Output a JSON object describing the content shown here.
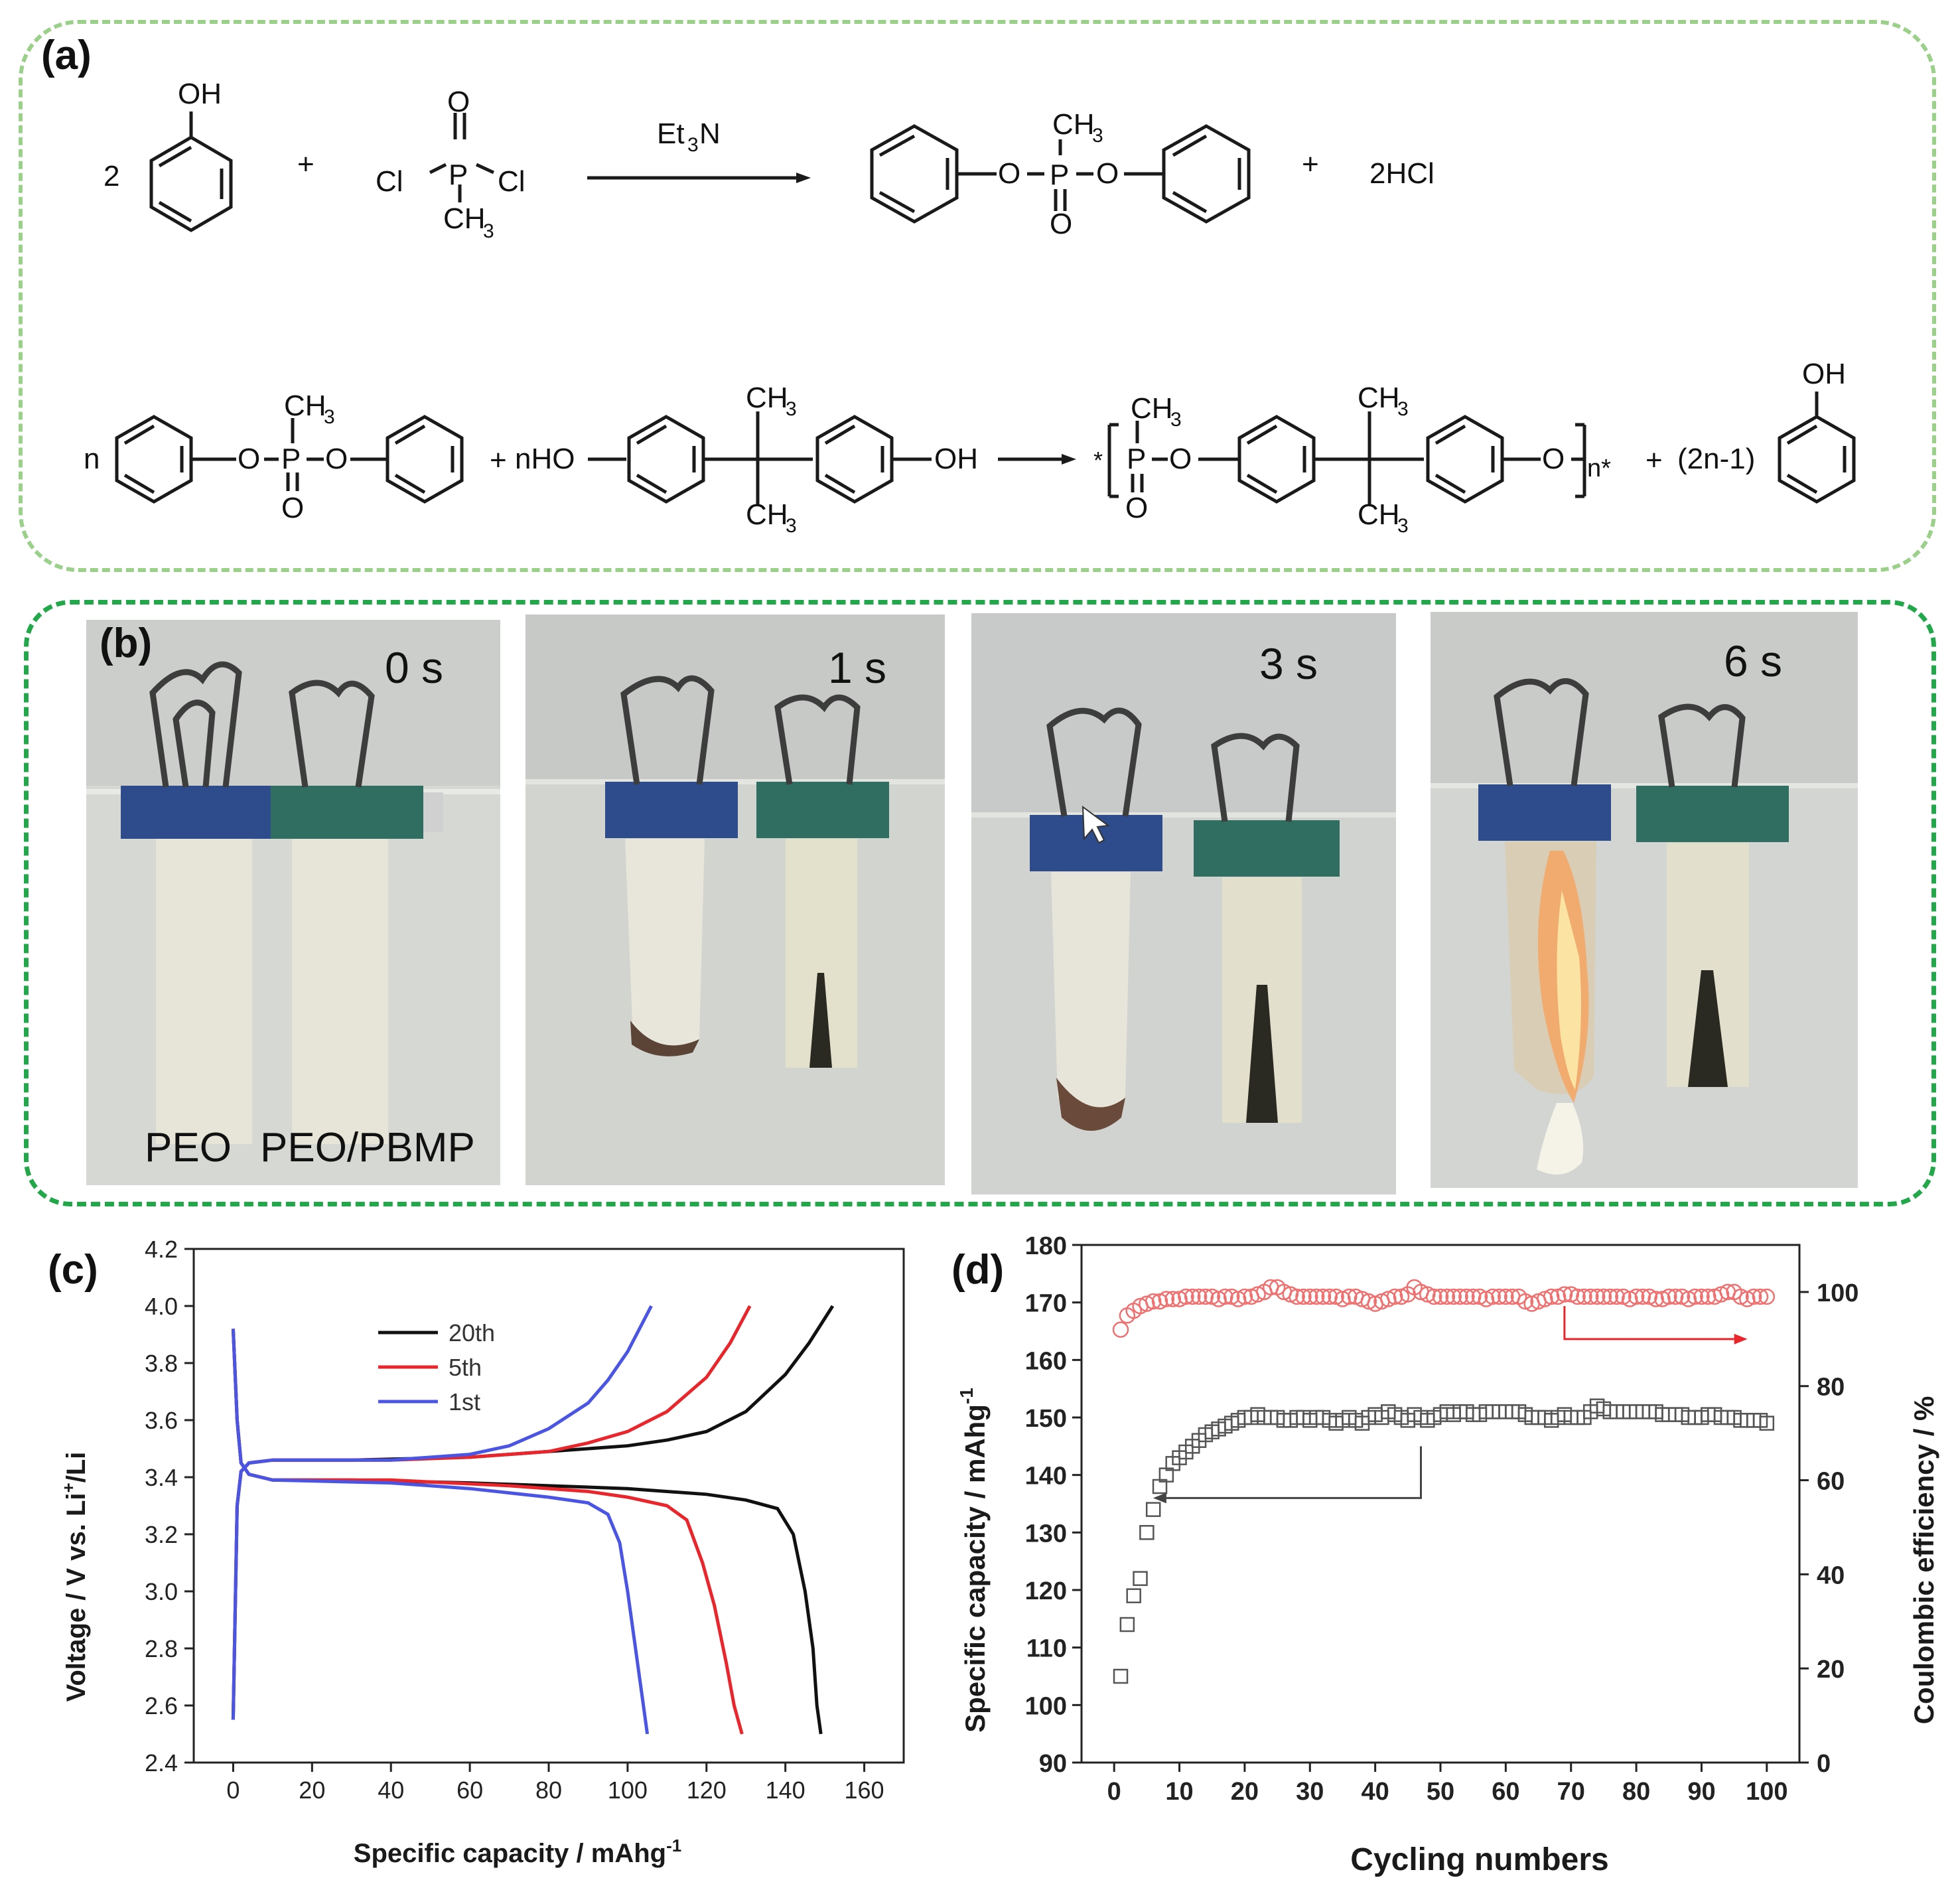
{
  "panel_labels": {
    "a": "(a)",
    "b": "(b)",
    "c": "(c)",
    "d": "(d)"
  },
  "reaction1": {
    "coef": "2",
    "oh": "OH",
    "plus": "+",
    "cl": "Cl",
    "p": "P",
    "o": "O",
    "ch3": "CH",
    "sub3": "3",
    "reagent": "Et",
    "reagent_sub": "3",
    "reagent_n": "N",
    "product_coef": "2HCl"
  },
  "reaction2": {
    "n": "n",
    "nho": "nHO",
    "oh": "OH",
    "o": "O",
    "p": "P",
    "ch3": "CH",
    "sub3": "3",
    "star": "*",
    "nstar": "n*",
    "plus": "+",
    "coef2": "(2n-1)"
  },
  "photos": {
    "times": [
      "0 s",
      "1 s",
      "3 s",
      "6 s"
    ],
    "label_peo": "PEO",
    "label_peo_pbmp": "PEO/PBMP"
  },
  "colors": {
    "clip_blue": "#2e4b8c",
    "clip_green": "#2f6e60",
    "flame": "#f4a766"
  },
  "chart_data": [
    {
      "type": "line",
      "panel": "c",
      "xlabel": "Specific capacity / mAhg",
      "xlabel_sup": "-1",
      "ylabel": "Voltage / V vs. Li",
      "ylabel_sup": "+",
      "ylabel_tail": "/Li",
      "xlim": [
        -10,
        170
      ],
      "ylim": [
        2.4,
        4.2
      ],
      "xticks": [
        0,
        20,
        40,
        60,
        80,
        100,
        120,
        140,
        160
      ],
      "yticks": [
        2.4,
        2.6,
        2.8,
        3.0,
        3.2,
        3.4,
        3.6,
        3.8,
        4.0,
        4.2
      ],
      "legend_position": "top",
      "series": [
        {
          "name": "20th",
          "color": "#111111",
          "charge": {
            "x": [
              0,
              1,
              2,
              4,
              10,
              30,
              60,
              80,
              100,
              110,
              120,
              130,
              140,
              146,
              152
            ],
            "y": [
              2.55,
              3.3,
              3.42,
              3.45,
              3.46,
              3.46,
              3.47,
              3.49,
              3.51,
              3.53,
              3.56,
              3.63,
              3.76,
              3.87,
              4.0
            ]
          },
          "discharge": {
            "x": [
              0,
              1,
              2,
              4,
              10,
              30,
              60,
              80,
              100,
              120,
              130,
              138,
              142,
              145,
              147,
              148,
              149
            ],
            "y": [
              3.92,
              3.6,
              3.45,
              3.41,
              3.39,
              3.39,
              3.38,
              3.37,
              3.36,
              3.34,
              3.32,
              3.29,
              3.2,
              3.0,
              2.8,
              2.6,
              2.5
            ]
          }
        },
        {
          "name": "5th",
          "color": "#e8262c",
          "charge": {
            "x": [
              0,
              1,
              2,
              4,
              10,
              40,
              60,
              80,
              90,
              100,
              110,
              120,
              126,
              131
            ],
            "y": [
              2.55,
              3.3,
              3.42,
              3.45,
              3.46,
              3.46,
              3.47,
              3.49,
              3.52,
              3.56,
              3.63,
              3.75,
              3.87,
              4.0
            ]
          },
          "discharge": {
            "x": [
              0,
              1,
              2,
              4,
              10,
              40,
              70,
              90,
              100,
              110,
              115,
              119,
              122,
              125,
              127,
              129
            ],
            "y": [
              3.92,
              3.6,
              3.45,
              3.41,
              3.39,
              3.39,
              3.37,
              3.35,
              3.33,
              3.3,
              3.25,
              3.1,
              2.95,
              2.75,
              2.6,
              2.5
            ]
          }
        },
        {
          "name": "1st",
          "color": "#4b55e4",
          "charge": {
            "x": [
              0,
              1,
              2,
              4,
              10,
              40,
              60,
              70,
              80,
              90,
              95,
              100,
              106
            ],
            "y": [
              2.55,
              3.3,
              3.42,
              3.45,
              3.46,
              3.46,
              3.48,
              3.51,
              3.57,
              3.66,
              3.74,
              3.84,
              4.0
            ]
          },
          "discharge": {
            "x": [
              0,
              1,
              2,
              4,
              10,
              40,
              60,
              80,
              90,
              95,
              98,
              100,
              102,
              104,
              105
            ],
            "y": [
              3.92,
              3.6,
              3.45,
              3.41,
              3.39,
              3.38,
              3.36,
              3.33,
              3.31,
              3.27,
              3.17,
              3.0,
              2.8,
              2.6,
              2.5
            ]
          }
        }
      ]
    },
    {
      "type": "scatter",
      "panel": "d",
      "xlabel": "Cycling numbers",
      "ylabel_left": "Specific capacity / mAhg",
      "ylabel_left_sup": "-1",
      "ylabel_right": "Coulombic efficiency / %",
      "xlim": [
        -5,
        105
      ],
      "ylim_left": [
        90,
        180
      ],
      "ylim_right": [
        0,
        110
      ],
      "xticks": [
        0,
        10,
        20,
        30,
        40,
        50,
        60,
        70,
        80,
        90,
        100
      ],
      "yticks_left": [
        90,
        100,
        110,
        120,
        130,
        140,
        150,
        160,
        170,
        180
      ],
      "yticks_right": [
        0,
        20,
        40,
        60,
        80,
        100
      ],
      "series": [
        {
          "name": "capacity",
          "axis": "left",
          "marker": "square",
          "color": "#555555",
          "x": [
            1,
            2,
            3,
            4,
            5,
            6,
            7,
            8,
            9,
            10,
            11,
            12,
            13,
            14,
            15,
            16,
            17,
            18,
            19,
            20,
            21,
            22,
            23,
            24,
            25,
            26,
            27,
            28,
            29,
            30,
            31,
            32,
            33,
            34,
            35,
            36,
            37,
            38,
            39,
            40,
            41,
            42,
            43,
            44,
            45,
            46,
            47,
            48,
            49,
            50,
            51,
            52,
            53,
            54,
            55,
            56,
            57,
            58,
            59,
            60,
            61,
            62,
            63,
            64,
            65,
            66,
            67,
            68,
            69,
            70,
            71,
            72,
            73,
            74,
            75,
            76,
            77,
            78,
            79,
            80,
            81,
            82,
            83,
            84,
            85,
            86,
            87,
            88,
            89,
            90,
            91,
            92,
            93,
            94,
            95,
            96,
            97,
            98,
            99,
            100
          ],
          "y": [
            105,
            114,
            119,
            122,
            130,
            134,
            138,
            140,
            142,
            143,
            144,
            145,
            146,
            147,
            147.5,
            148,
            148.5,
            149,
            149.5,
            150,
            150,
            150.5,
            150,
            150,
            150,
            149.5,
            149.5,
            150,
            150,
            149.5,
            150,
            150,
            149.5,
            149,
            149.5,
            150,
            149.5,
            149,
            150,
            150.5,
            150,
            151,
            150.5,
            150,
            149.5,
            150.5,
            150,
            149.5,
            150,
            150.5,
            151,
            150.5,
            151,
            151,
            150.5,
            150.5,
            151,
            151,
            151,
            151,
            151,
            151,
            150.5,
            150,
            150,
            150,
            149.5,
            150,
            150.5,
            150,
            150,
            150,
            151,
            152,
            151.5,
            151,
            151,
            151,
            151,
            151,
            151,
            151,
            151,
            150.5,
            150.5,
            150.5,
            150.5,
            150,
            150,
            150,
            150.5,
            150.5,
            150,
            150,
            150,
            149.5,
            149.5,
            149.5,
            149.5,
            149
          ]
        },
        {
          "name": "efficiency",
          "axis": "right",
          "marker": "circle",
          "color": "#f07070",
          "x": [
            1,
            2,
            3,
            4,
            5,
            6,
            7,
            8,
            9,
            10,
            11,
            12,
            13,
            14,
            15,
            16,
            17,
            18,
            19,
            20,
            21,
            22,
            23,
            24,
            25,
            26,
            27,
            28,
            29,
            30,
            31,
            32,
            33,
            34,
            35,
            36,
            37,
            38,
            39,
            40,
            41,
            42,
            43,
            44,
            45,
            46,
            47,
            48,
            49,
            50,
            51,
            52,
            53,
            54,
            55,
            56,
            57,
            58,
            59,
            60,
            61,
            62,
            63,
            64,
            65,
            66,
            67,
            68,
            69,
            70,
            71,
            72,
            73,
            74,
            75,
            76,
            77,
            78,
            79,
            80,
            81,
            82,
            83,
            84,
            85,
            86,
            87,
            88,
            89,
            90,
            91,
            92,
            93,
            94,
            95,
            96,
            97,
            98,
            99,
            100
          ],
          "y": [
            92,
            95,
            96,
            97,
            97.5,
            98,
            98,
            98.5,
            98.5,
            98.5,
            99,
            99,
            99,
            99,
            99,
            98.5,
            99,
            99,
            98.5,
            99,
            99,
            99.5,
            100,
            101,
            101,
            100,
            99.5,
            99,
            99,
            99,
            99,
            99,
            99,
            99,
            98.5,
            99,
            99,
            98.5,
            98,
            97.5,
            98,
            98.5,
            99,
            99,
            99.5,
            101,
            100,
            99.5,
            99,
            99,
            99,
            99,
            99,
            99,
            99,
            99,
            98.5,
            99,
            99,
            99,
            99,
            99,
            98,
            97.5,
            98,
            98.5,
            99,
            99,
            99.5,
            99.5,
            99,
            99,
            99,
            99,
            99,
            99,
            99,
            99,
            98.5,
            99,
            99,
            99,
            98.5,
            98.5,
            99,
            99,
            99,
            98.5,
            99,
            99,
            99,
            99,
            99.5,
            100,
            100,
            99,
            98.5,
            99,
            99,
            99
          ]
        }
      ]
    }
  ]
}
